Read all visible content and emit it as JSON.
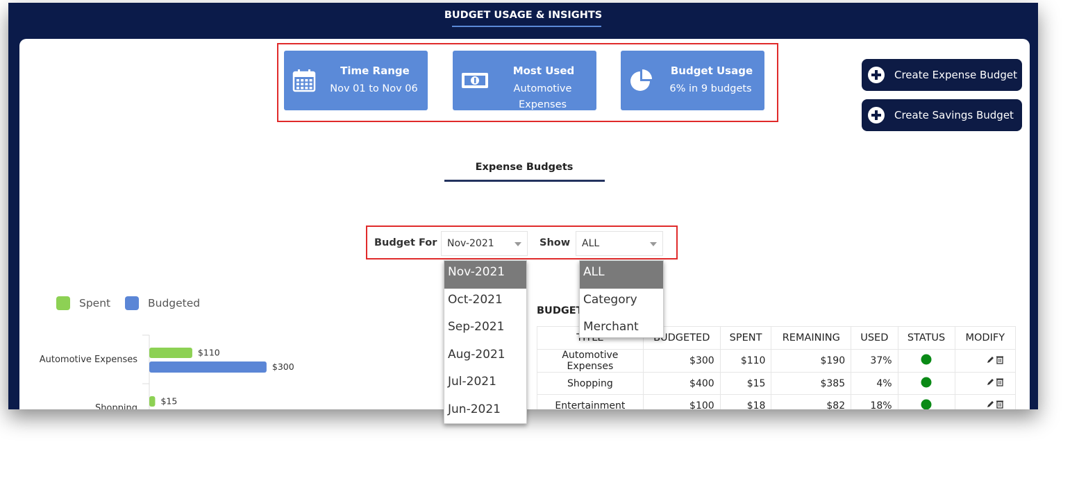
{
  "header": {
    "title": "BUDGET USAGE & INSIGHTS"
  },
  "summary_cards": [
    {
      "title": "Time Range",
      "value": "Nov 01 to Nov 06"
    },
    {
      "title": "Most Used",
      "value": "Automotive Expenses"
    },
    {
      "title": "Budget Usage",
      "value": "6% in 9 budgets"
    }
  ],
  "buttons": [
    "Create Expense Budget",
    "Create Savings Budget"
  ],
  "tab": "Expense Budgets",
  "filters": {
    "budget_for": {
      "label": "Budget For",
      "selected": "Nov-2021",
      "options": [
        "Nov-2021",
        "Oct-2021",
        "Sep-2021",
        "Aug-2021",
        "Jul-2021",
        "Jun-2021"
      ]
    },
    "show": {
      "label": "Show",
      "selected": "ALL",
      "options": [
        "ALL",
        "Category",
        "Merchant"
      ]
    }
  },
  "chart_data": {
    "type": "bar",
    "categories": [
      "Automotive Expenses",
      "Shopping"
    ],
    "series": [
      {
        "name": "Spent",
        "color": "#8dd154",
        "values": [
          110,
          15
        ],
        "value_labels": [
          "$110",
          "$15"
        ]
      },
      {
        "name": "Budgeted",
        "color": "#5b86d6",
        "values": [
          300,
          null
        ],
        "value_labels": [
          "$300",
          null
        ]
      }
    ]
  },
  "table": {
    "title": "BUDGET",
    "columns": [
      "TITLE",
      "BUDGETED",
      "SPENT",
      "REMAINING",
      "USED",
      "STATUS",
      "MODIFY"
    ],
    "rows": [
      [
        "Automotive Expenses",
        "$300",
        "$110",
        "$190",
        "37%"
      ],
      [
        "Shopping",
        "$400",
        "$15",
        "$385",
        "4%"
      ],
      [
        "Entertainment",
        "$100",
        "$18",
        "$82",
        "18%"
      ]
    ]
  }
}
